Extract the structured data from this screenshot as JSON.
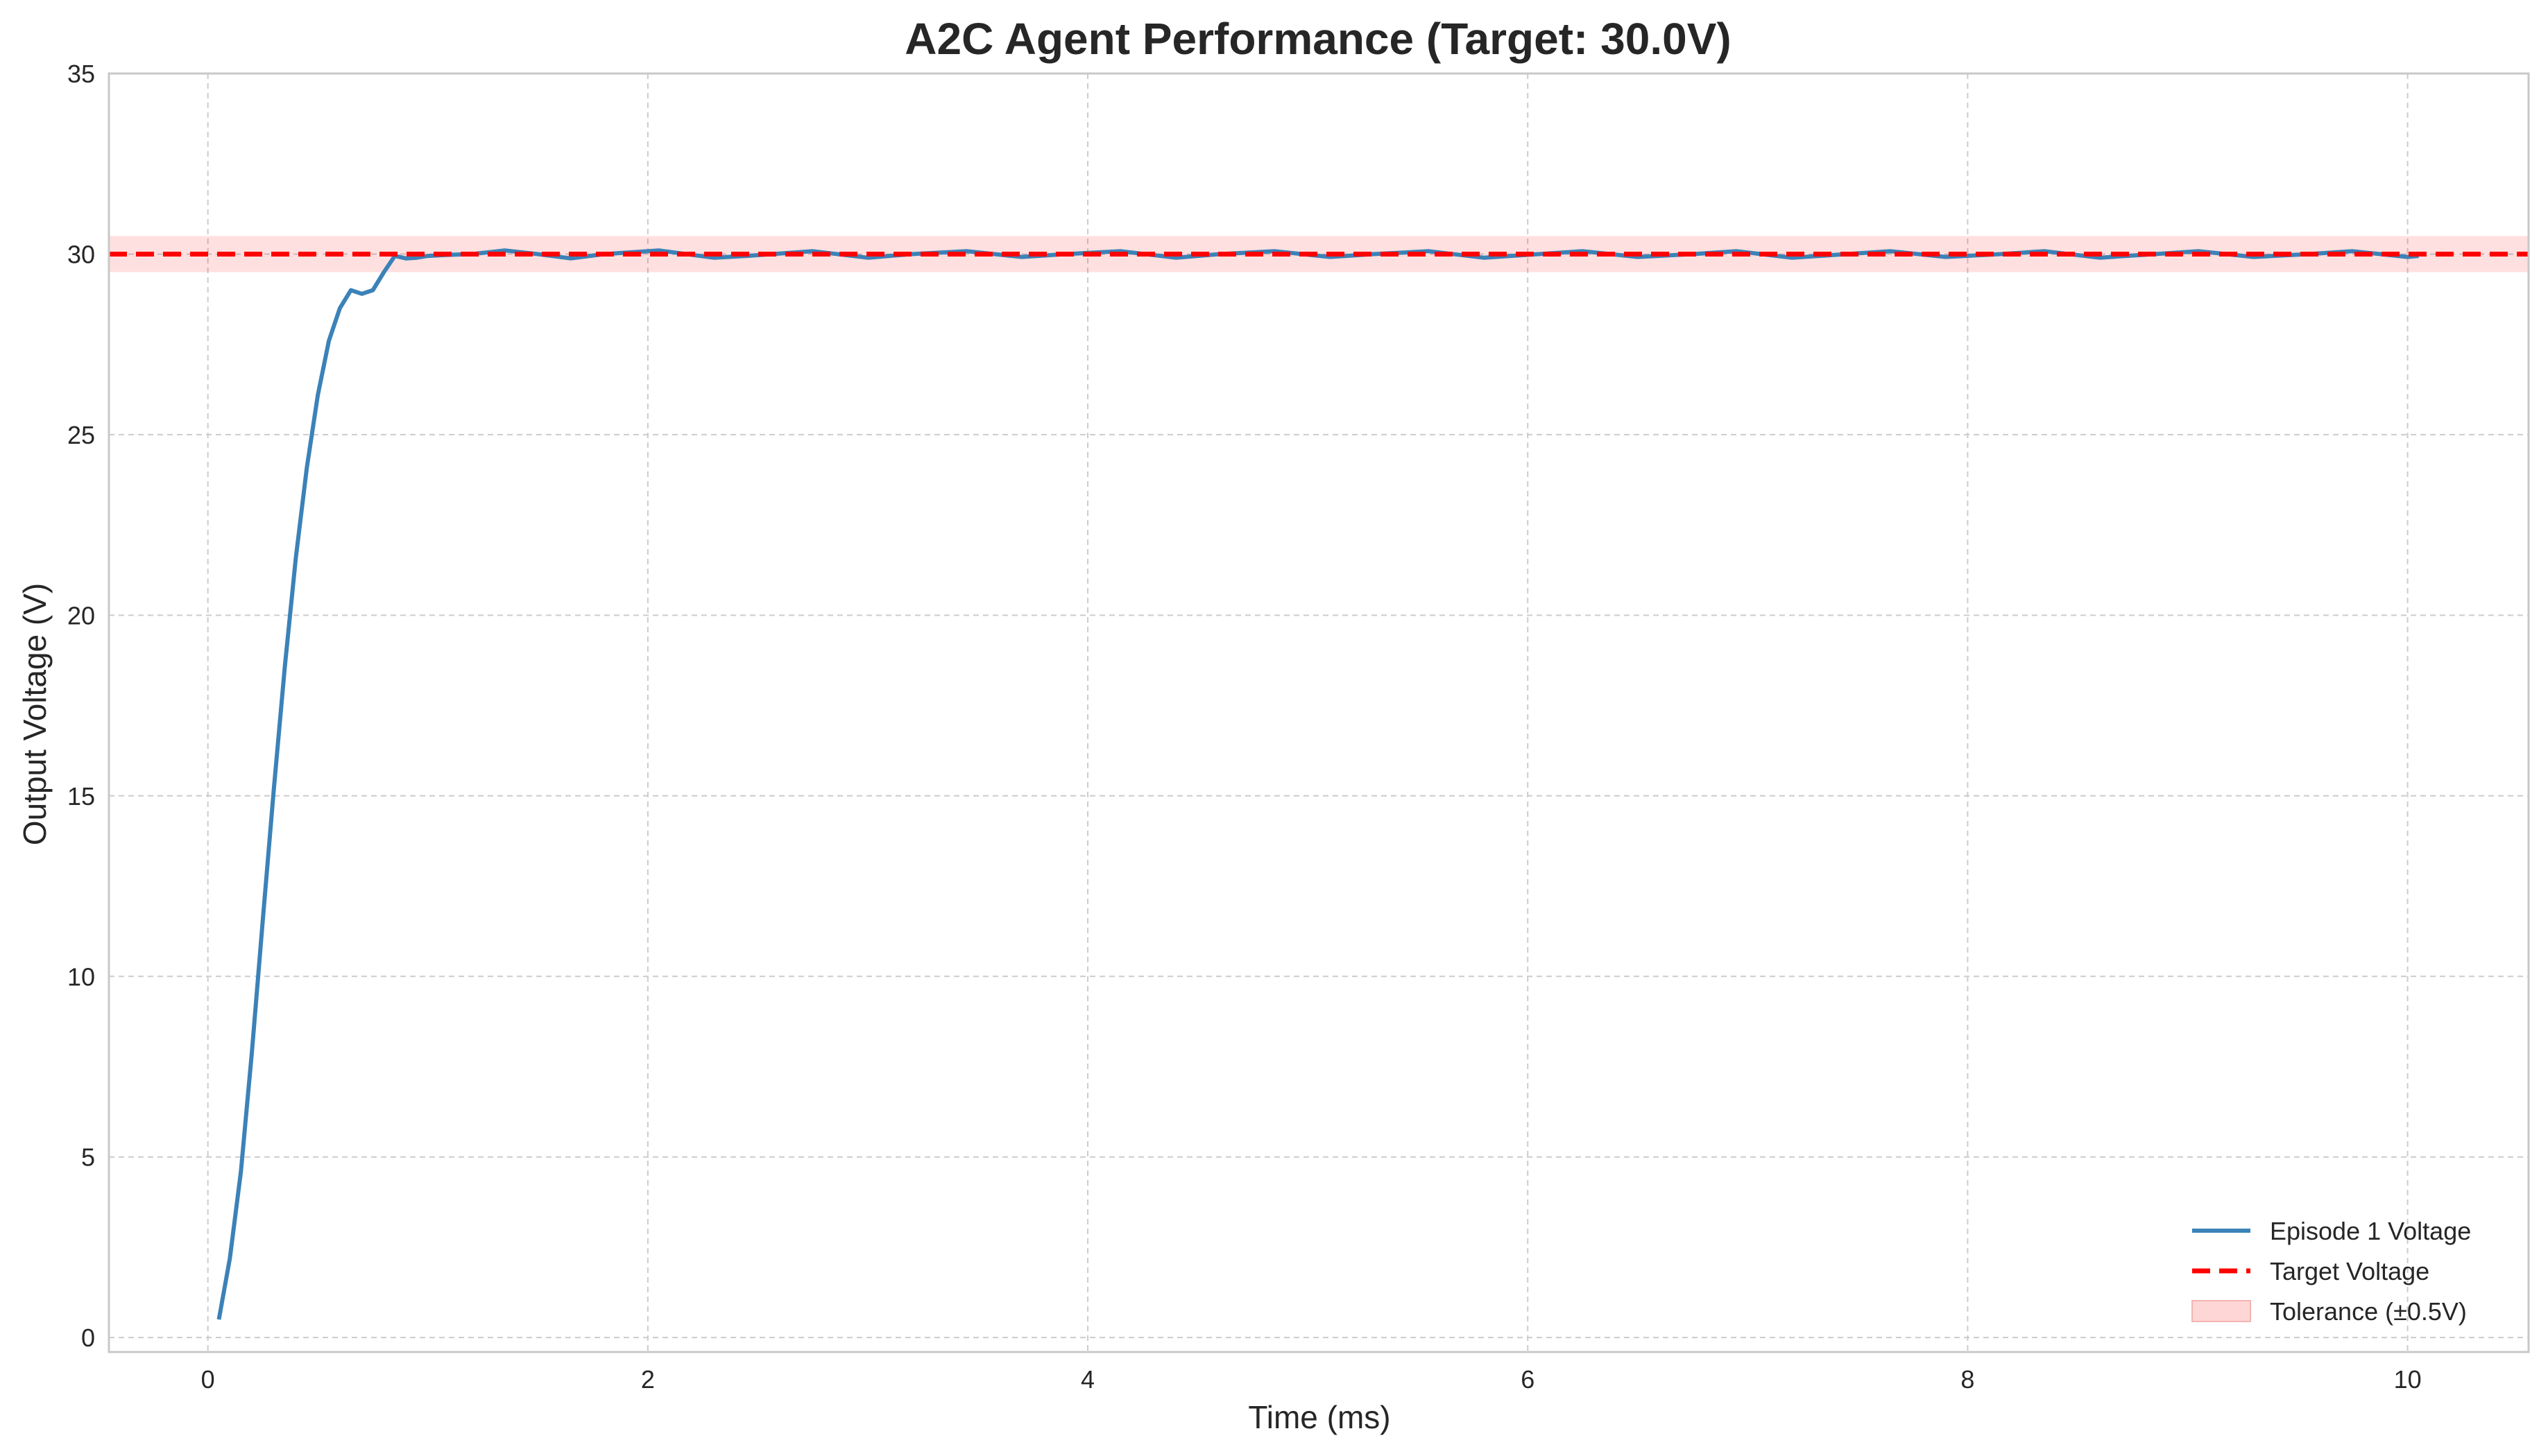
{
  "chart_data": {
    "type": "line",
    "title": "A2C Agent Performance (Target: 30.0V)",
    "xlabel": "Time (ms)",
    "ylabel": "Output Voltage (V)",
    "xlim": [
      -0.45,
      10.55
    ],
    "ylim": [
      -0.4,
      35
    ],
    "xticks": [
      0,
      2,
      4,
      6,
      8,
      10
    ],
    "yticks": [
      0,
      5,
      10,
      15,
      20,
      25,
      30,
      35
    ],
    "grid": true,
    "legend_position": "bottom-right",
    "target": 30.0,
    "tolerance": 0.5,
    "series": [
      {
        "name": "Episode 1 Voltage",
        "color": "#3b82b8",
        "x": [
          0.05,
          0.1,
          0.15,
          0.2,
          0.25,
          0.3,
          0.35,
          0.4,
          0.45,
          0.5,
          0.55,
          0.6,
          0.65,
          0.7,
          0.75,
          0.8,
          0.85,
          0.9,
          0.95,
          1.0,
          1.1,
          1.2,
          1.35,
          1.5,
          1.65,
          1.8,
          2.05,
          2.3,
          2.45,
          2.75,
          3.0,
          3.2,
          3.45,
          3.7,
          3.9,
          4.15,
          4.4,
          4.6,
          4.85,
          5.1,
          5.3,
          5.55,
          5.8,
          6.05,
          6.25,
          6.5,
          6.75,
          6.95,
          7.2,
          7.45,
          7.65,
          7.9,
          8.15,
          8.35,
          8.6,
          8.85,
          9.05,
          9.3,
          9.55,
          9.75,
          10.0,
          10.05
        ],
        "y": [
          0.5,
          2.2,
          4.6,
          7.9,
          11.6,
          15.2,
          18.6,
          21.6,
          24.1,
          26.1,
          27.6,
          28.5,
          29.0,
          28.9,
          29.0,
          29.5,
          29.95,
          29.88,
          29.9,
          29.95,
          29.98,
          30.0,
          30.1,
          30.0,
          29.88,
          30.0,
          30.1,
          29.9,
          29.95,
          30.08,
          29.9,
          30.0,
          30.08,
          29.92,
          30.0,
          30.08,
          29.9,
          30.0,
          30.08,
          29.92,
          30.0,
          30.08,
          29.9,
          30.0,
          30.08,
          29.92,
          30.0,
          30.08,
          29.9,
          30.0,
          30.08,
          29.92,
          30.0,
          30.08,
          29.9,
          30.0,
          30.08,
          29.92,
          30.0,
          30.08,
          29.92,
          29.95
        ]
      }
    ],
    "legend": [
      {
        "label": "Episode 1 Voltage",
        "kind": "line",
        "color": "#3b82b8"
      },
      {
        "label": "Target Voltage",
        "kind": "dashed",
        "color": "#ff0000"
      },
      {
        "label": "Tolerance (±0.5V)",
        "kind": "patch",
        "color": "#ffd6d6"
      }
    ]
  }
}
